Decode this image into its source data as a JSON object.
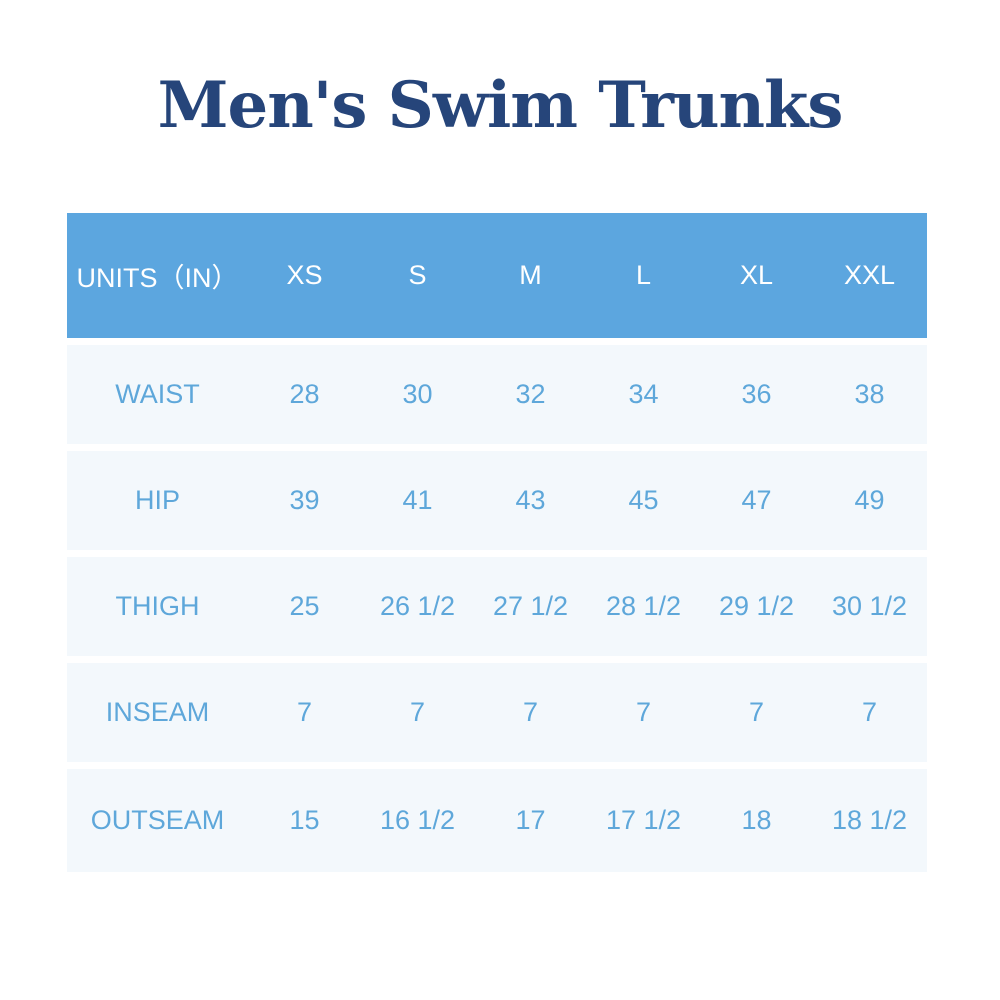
{
  "title": "Men's Swim Trunks",
  "table": {
    "header": [
      "UNITS（IN）",
      "XS",
      "S",
      "M",
      "L",
      "XL",
      "XXL"
    ],
    "rows": [
      [
        "WAIST",
        "28",
        "30",
        "32",
        "34",
        "36",
        "38"
      ],
      [
        "HIP",
        "39",
        "41",
        "43",
        "45",
        "47",
        "49"
      ],
      [
        "THIGH",
        "25",
        "26 1/2",
        "27 1/2",
        "28 1/2",
        "29 1/2",
        "30 1/2"
      ],
      [
        "INSEAM",
        "7",
        "7",
        "7",
        "7",
        "7",
        "7"
      ],
      [
        "OUTSEAM",
        "15",
        "16 1/2",
        "17",
        "17 1/2",
        "18",
        "18 1/2"
      ]
    ]
  },
  "colors": {
    "title": "#26457a",
    "header_bg": "#5ca6df",
    "row_bg": "#f3f8fc",
    "cell_text": "#5ea7da"
  }
}
